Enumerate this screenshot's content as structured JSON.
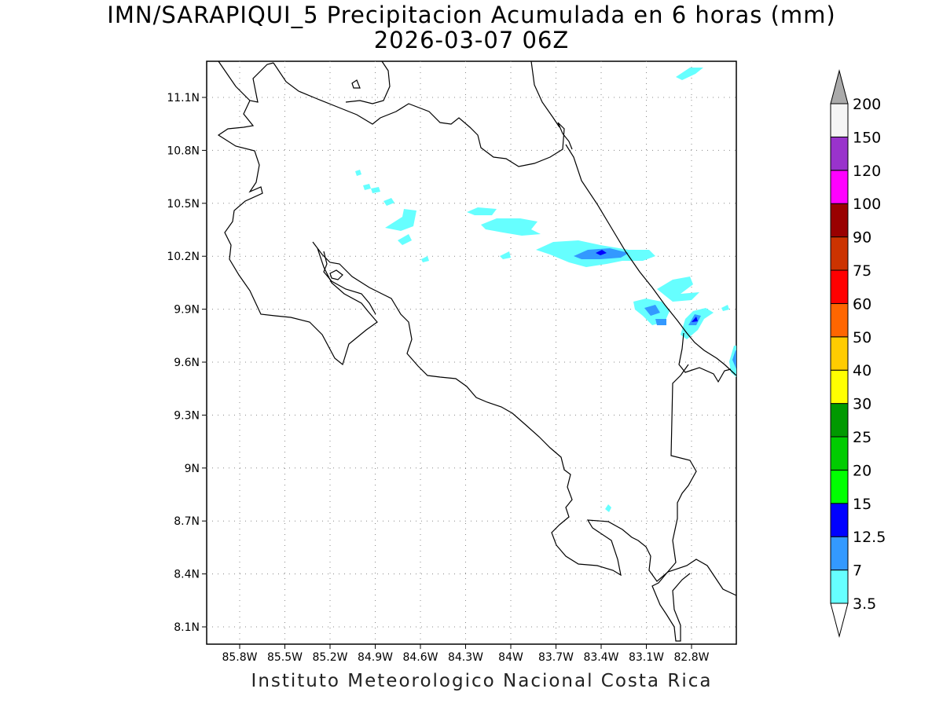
{
  "title": {
    "line1": "IMN/SARAPIQUI_5 Precipitacion Acumulada en 6 horas (mm)",
    "line2": "2026-03-07 06Z"
  },
  "credit": "Instituto Meteorologico Nacional Costa Rica",
  "map": {
    "lon_labels": [
      "85.8W",
      "85.5W",
      "85.2W",
      "84.9W",
      "84.6W",
      "84.3W",
      "84W",
      "83.7W",
      "83.4W",
      "83.1W",
      "82.8W"
    ],
    "lat_labels": [
      "11.1N",
      "10.8N",
      "10.5N",
      "10.2N",
      "9.9N",
      "9.6N",
      "9.3N",
      "9N",
      "8.7N",
      "8.4N",
      "8.1N"
    ]
  },
  "colorbar": {
    "labels": [
      "3.5",
      "7",
      "12.5",
      "15",
      "20",
      "25",
      "30",
      "40",
      "50",
      "60",
      "75",
      "90",
      "100",
      "120",
      "150",
      "200"
    ],
    "colors": [
      "#66ffff",
      "#3399ff",
      "#0000ff",
      "#00ff00",
      "#00cc00",
      "#009900",
      "#ffff00",
      "#ffcc00",
      "#ff6600",
      "#ff0000",
      "#cc3300",
      "#990000",
      "#ff00ff",
      "#9933cc",
      "#f5f5f5"
    ],
    "top_arrow_color": "#aaaaaa",
    "bottom_arrow_color": "#ffffff"
  }
}
